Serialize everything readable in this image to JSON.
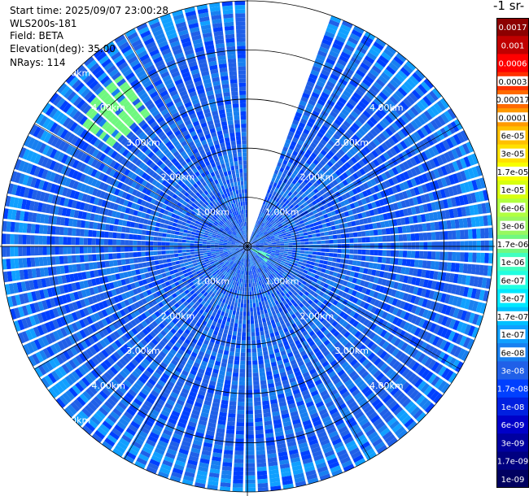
{
  "header": {
    "start_time": "Start time: 2025/09/07 23:00:28",
    "instrument": "WLS200s-181",
    "field": "Field: BETA",
    "elevation": "Elevation(deg): 35.00",
    "nrays": "NRays: 114"
  },
  "colorbar": {
    "title": "-1 sr-",
    "labels": [
      "0.0017",
      "0.001",
      "0.0006",
      "0.0003",
      "0.00017",
      "0.0001",
      "6e-05",
      "3e-05",
      "1.7e-05",
      "1e-05",
      "6e-06",
      "3e-06",
      "1.7e-06",
      "1e-06",
      "6e-07",
      "3e-07",
      "1.7e-07",
      "1e-07",
      "6e-08",
      "3e-08",
      "1.7e-08",
      "1e-08",
      "6e-09",
      "3e-09",
      "1.7e-09",
      "1e-09"
    ],
    "colors": [
      "#8c0000",
      "#c00000",
      "#ff0000",
      "#ff3000",
      "#ff6a00",
      "#ff9a00",
      "#ffc000",
      "#ffe000",
      "#f8ff00",
      "#d8ff10",
      "#b0ff40",
      "#98f860",
      "#70f880",
      "#40ffc0",
      "#20ffe0",
      "#00e8ff",
      "#00c0ff",
      "#10a0ff",
      "#1880f0",
      "#2060e8",
      "#0040ff",
      "#0020e0",
      "#0000c8",
      "#0000a0",
      "#000080",
      "#000060"
    ]
  },
  "chart_data": {
    "type": "heatmap",
    "projection": "polar (PPI)",
    "field": "BETA",
    "elevation_deg": 35.0,
    "n_rays": 114,
    "range_rings_km": [
      1.0,
      2.0,
      3.0,
      4.0,
      5.0
    ],
    "ring_labels": [
      "1.00km",
      "2.00km",
      "3.00km",
      "4.00km",
      "5.00km"
    ],
    "max_range_km": 5.0,
    "missing_azimuth_sector_deg": [
      0,
      20
    ],
    "dominant_value": "3e-08",
    "high_return_regions": [
      {
        "azimuth_deg": 315,
        "range_km": [
          3.3,
          4.3
        ],
        "value": "1.7e-06"
      },
      {
        "azimuth_deg": 120,
        "range_km": [
          0.1,
          0.5
        ],
        "value": "1e-06"
      }
    ],
    "low_return_regions": [
      {
        "azimuth_deg": 15,
        "range_km": [
          0.0,
          1.0
        ],
        "value": "1e-08"
      }
    ]
  }
}
